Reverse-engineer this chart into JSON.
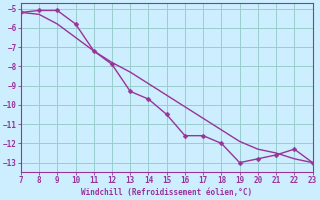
{
  "xlabel": "Windchill (Refroidissement éolien,°C)",
  "background_color": "#cceeff",
  "grid_color": "#99cccc",
  "line_color": "#993399",
  "x_data": [
    7,
    8,
    9,
    10,
    11,
    12,
    13,
    14,
    15,
    16,
    17,
    18,
    19,
    20,
    21,
    22,
    23
  ],
  "y_stepped": [
    -5.2,
    -5.1,
    -5.1,
    -5.8,
    -7.2,
    -7.9,
    -9.3,
    -9.7,
    -10.5,
    -11.6,
    -11.6,
    -12.0,
    -13.0,
    -12.8,
    -12.6,
    -12.3,
    -13.0
  ],
  "y_smooth": [
    -5.2,
    -5.3,
    -5.8,
    -6.5,
    -7.2,
    -7.8,
    -8.3,
    -8.9,
    -9.5,
    -10.1,
    -10.7,
    -11.3,
    -11.9,
    -12.3,
    -12.5,
    -12.8,
    -13.0
  ],
  "xlim": [
    7,
    23
  ],
  "ylim": [
    -13.5,
    -4.7
  ],
  "xticks": [
    7,
    8,
    9,
    10,
    11,
    12,
    13,
    14,
    15,
    16,
    17,
    18,
    19,
    20,
    21,
    22,
    23
  ],
  "yticks": [
    -5,
    -6,
    -7,
    -8,
    -9,
    -10,
    -11,
    -12,
    -13
  ],
  "markersize": 2.5,
  "linewidth": 1.0
}
